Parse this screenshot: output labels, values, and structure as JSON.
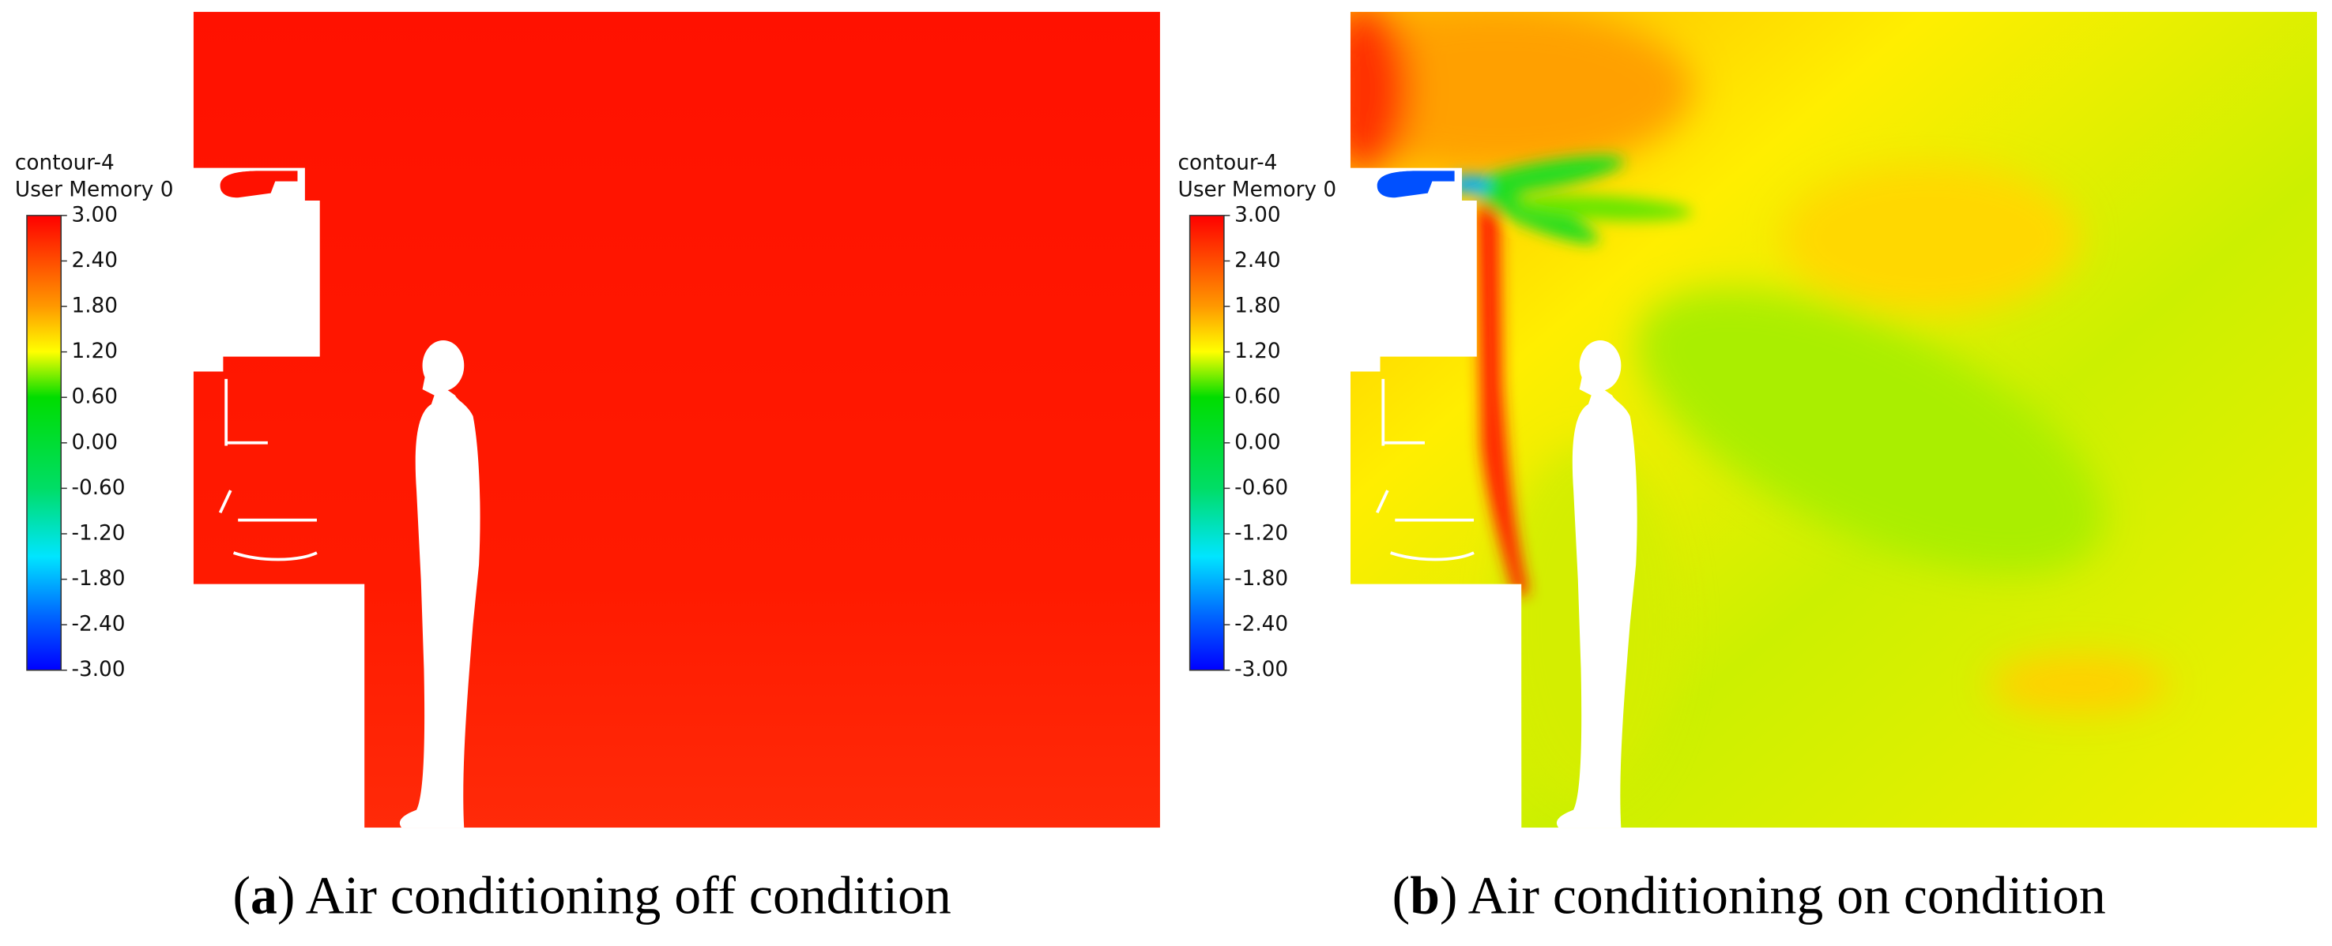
{
  "panels": [
    {
      "legend": {
        "title": "contour-4",
        "subtitle": "User Memory 0",
        "ticks": [
          "3.00",
          "2.40",
          "1.80",
          "1.20",
          "0.60",
          "0.00",
          "-0.60",
          "-1.20",
          "-1.80",
          "-2.40",
          "-3.00"
        ]
      },
      "caption": [
        "(",
        "a",
        ") Air conditioning off condition"
      ]
    },
    {
      "legend": {
        "title": "contour-4",
        "subtitle": "User Memory 0",
        "ticks": [
          "3.00",
          "2.40",
          "1.80",
          "1.20",
          "0.60",
          "0.00",
          "-0.60",
          "-1.20",
          "-1.80",
          "-2.40",
          "-3.00"
        ]
      },
      "caption": [
        "(",
        "b",
        ") Air conditioning on condition"
      ]
    }
  ]
}
